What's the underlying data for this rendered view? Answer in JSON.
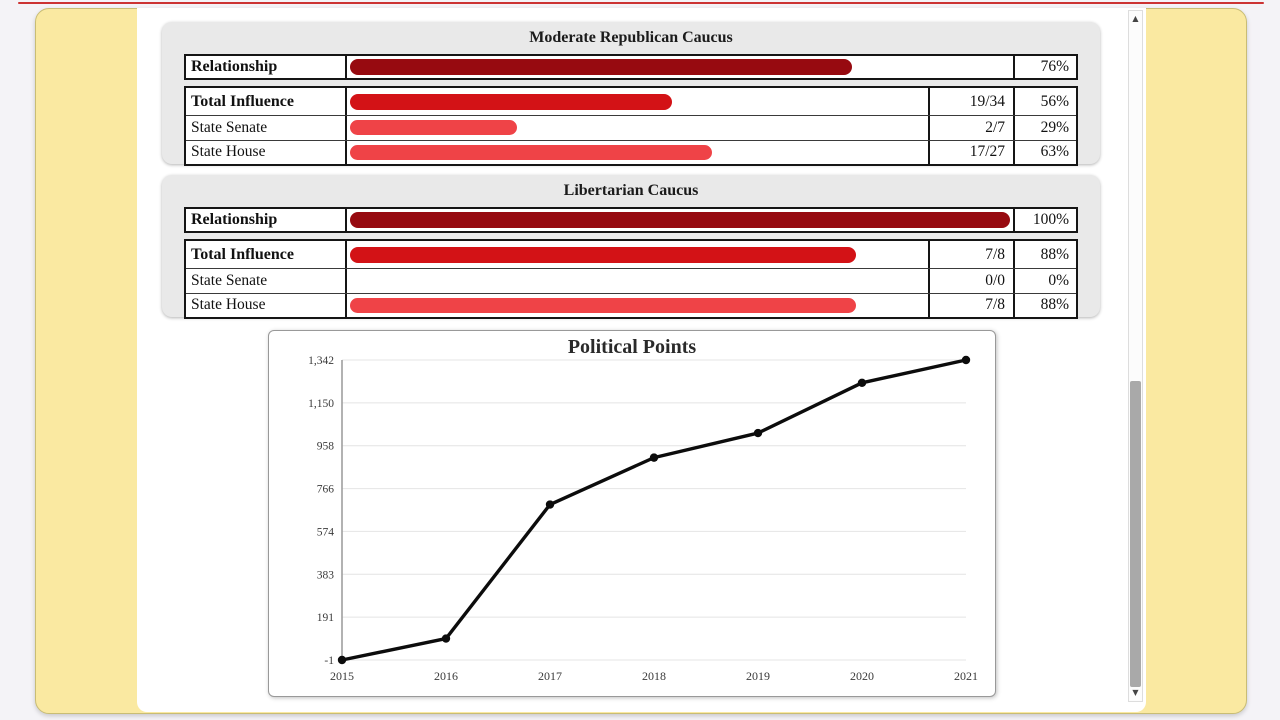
{
  "colors": {
    "relationship_bar": "#970A10",
    "influence_bar": "#D31216",
    "state_bar": "#EF4347",
    "panel_yellow": "#FAE9A1",
    "card_gray": "#E9E9E9",
    "top_accent": "#CC3333"
  },
  "scrollbar": {
    "up_icon": "▲",
    "down_icon": "▼"
  },
  "caucuses": [
    {
      "title": "Moderate Republican Caucus",
      "relationship": {
        "label": "Relationship",
        "pct": 76,
        "pct_text": "76%"
      },
      "rows": [
        {
          "label": "Total Influence",
          "fraction": "19/34",
          "pct": 56,
          "pct_text": "56%"
        },
        {
          "label": "State Senate",
          "fraction": "2/7",
          "pct": 29,
          "pct_text": "29%"
        },
        {
          "label": "State House",
          "fraction": "17/27",
          "pct": 63,
          "pct_text": "63%"
        }
      ]
    },
    {
      "title": "Libertarian Caucus",
      "relationship": {
        "label": "Relationship",
        "pct": 100,
        "pct_text": "100%"
      },
      "rows": [
        {
          "label": "Total Influence",
          "fraction": "7/8",
          "pct": 88,
          "pct_text": "88%"
        },
        {
          "label": "State Senate",
          "fraction": "0/0",
          "pct": 0,
          "pct_text": "0%"
        },
        {
          "label": "State House",
          "fraction": "7/8",
          "pct": 88,
          "pct_text": "88%"
        }
      ]
    }
  ],
  "chart_data": {
    "type": "line",
    "title": "Political Points",
    "x": [
      "2015",
      "2016",
      "2017",
      "2018",
      "2019",
      "2020",
      "2021"
    ],
    "values": [
      -1,
      95,
      695,
      905,
      1015,
      1240,
      1342
    ],
    "ylim": [
      -1,
      1342
    ],
    "yticks": [
      "1,342",
      "1,150",
      "958",
      "766",
      "574",
      "383",
      "191",
      "-1"
    ],
    "xlabel": "",
    "ylabel": "",
    "grid": true,
    "legend": "none",
    "line_color": "#0c0c0c"
  }
}
